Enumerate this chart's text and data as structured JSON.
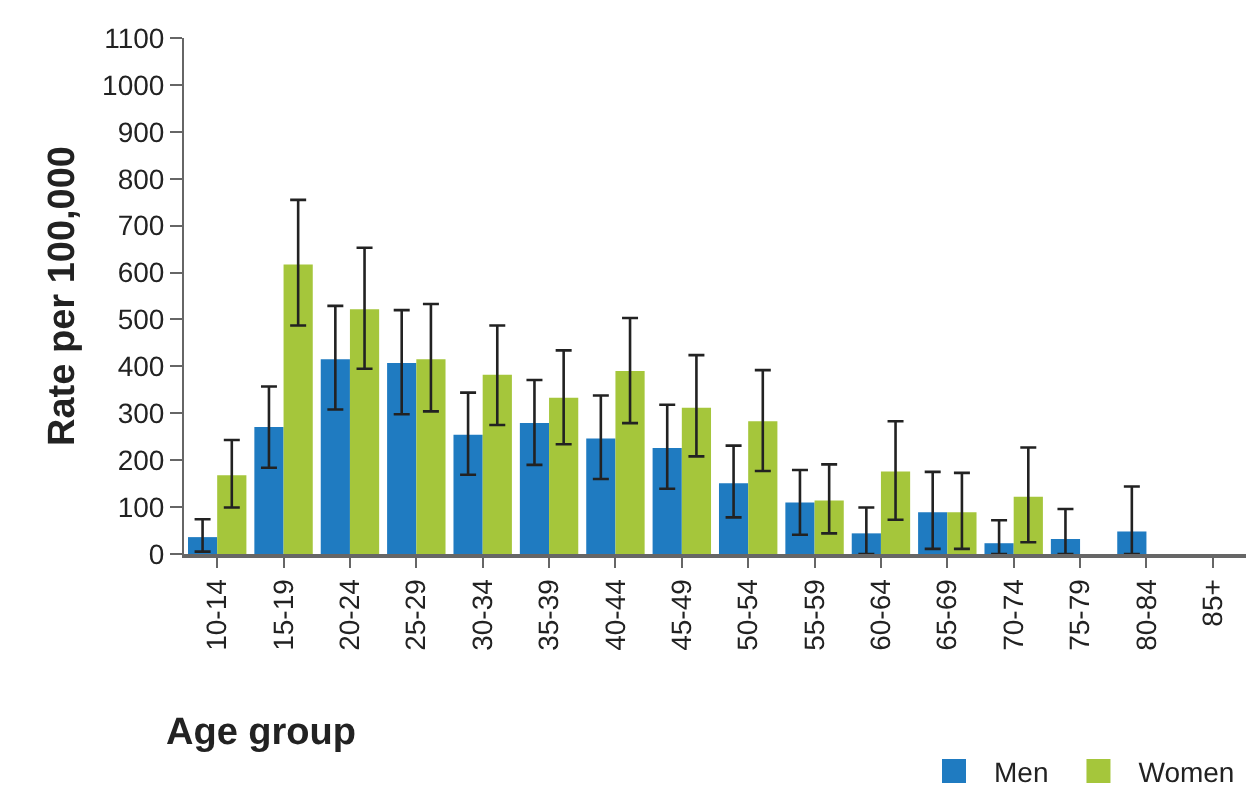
{
  "chart_data": {
    "type": "bar",
    "xlabel": "Age group",
    "ylabel": "Rate per 100,000",
    "categories": [
      "10-14",
      "15-19",
      "20-24",
      "25-29",
      "30-34",
      "35-39",
      "40-44",
      "45-49",
      "50-54",
      "55-59",
      "60-64",
      "65-69",
      "70-74",
      "75-79",
      "80-84",
      "85+"
    ],
    "series": [
      {
        "name": "Men",
        "color": "#1f7bc1",
        "values": [
          36,
          271,
          415,
          407,
          254,
          279,
          246,
          226,
          151,
          110,
          44,
          89,
          23,
          32,
          48,
          null
        ],
        "errors": [
          [
            5,
            74
          ],
          [
            184,
            357
          ],
          [
            308,
            529
          ],
          [
            298,
            520
          ],
          [
            169,
            344
          ],
          [
            190,
            371
          ],
          [
            160,
            338
          ],
          [
            139,
            318
          ],
          [
            78,
            231
          ],
          [
            41,
            179
          ],
          [
            0,
            99
          ],
          [
            11,
            175
          ],
          [
            0,
            72
          ],
          [
            0,
            96
          ],
          [
            0,
            144
          ],
          null
        ]
      },
      {
        "name": "Women",
        "color": "#a5c63b",
        "values": [
          168,
          617,
          522,
          415,
          382,
          333,
          390,
          312,
          283,
          114,
          176,
          89,
          122,
          null,
          null,
          null
        ],
        "errors": [
          [
            99,
            243
          ],
          [
            487,
            755
          ],
          [
            395,
            653
          ],
          [
            304,
            533
          ],
          [
            275,
            487
          ],
          [
            234,
            434
          ],
          [
            279,
            503
          ],
          [
            208,
            424
          ],
          [
            177,
            392
          ],
          [
            44,
            191
          ],
          [
            73,
            283
          ],
          [
            11,
            173
          ],
          [
            25,
            227
          ],
          null,
          null,
          null
        ]
      }
    ],
    "ylim": [
      0,
      1100
    ],
    "yticks": [
      0,
      100,
      200,
      300,
      400,
      500,
      600,
      700,
      800,
      900,
      1000,
      1100
    ],
    "grid": false,
    "legend": "bottom right"
  }
}
